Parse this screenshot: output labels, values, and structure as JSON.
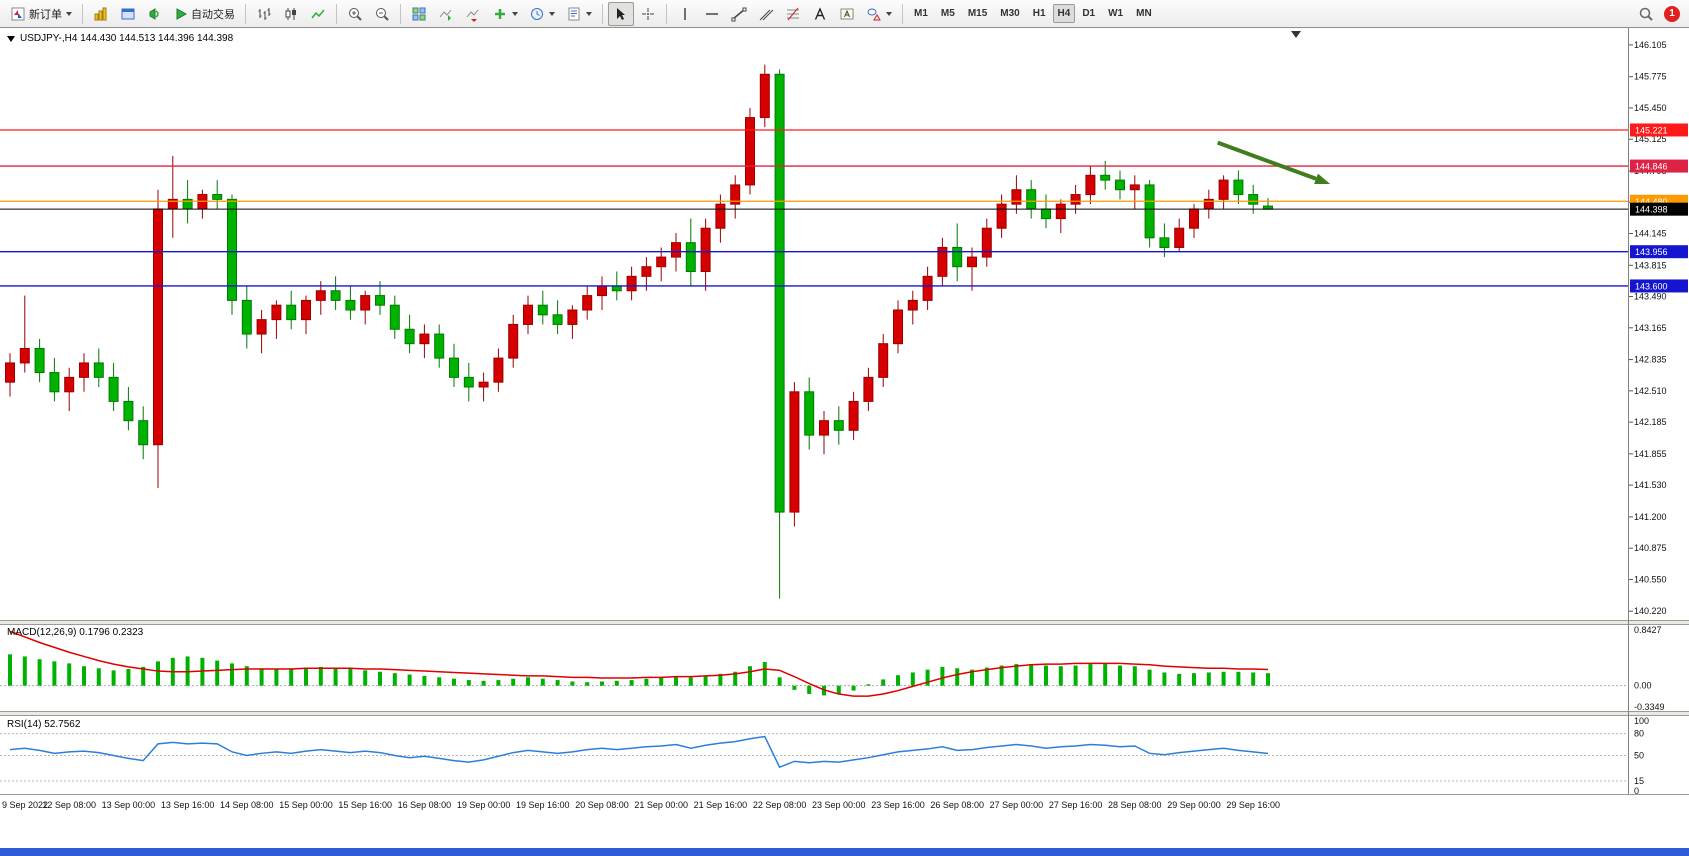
{
  "toolbar": {
    "new_order_label": "新订单",
    "autotrade_label": "自动交易",
    "timeframes": [
      "M1",
      "M5",
      "M15",
      "M30",
      "H1",
      "H4",
      "D1",
      "W1",
      "MN"
    ],
    "active_timeframe": "H4",
    "badge_count": "1"
  },
  "chart": {
    "header_text": "USDJPY-,H4  144.430 144.513 144.396 144.398"
  },
  "chart_data": {
    "type": "candlestick",
    "symbol": "USDJPY-",
    "timeframe": "H4",
    "ohlc_header": {
      "open": 144.43,
      "high": 144.513,
      "low": 144.396,
      "close": 144.398
    },
    "colors": {
      "bull": "#d60000",
      "bull_dark": "#9a0000",
      "bear": "#00b200",
      "bear_dark": "#007a00"
    },
    "price_axis": {
      "min": 140.22,
      "max": 146.105,
      "ticks": [
        "146.105",
        "145.775",
        "145.450",
        "145.125",
        "144.795",
        "144.470",
        "144.145",
        "143.815",
        "143.490",
        "143.165",
        "142.835",
        "142.510",
        "142.185",
        "141.855",
        "141.530",
        "141.200",
        "140.875",
        "140.550",
        "140.220"
      ]
    },
    "hlines": [
      {
        "price": 145.221,
        "label": "145.221",
        "color": "#ff1a1a"
      },
      {
        "price": 144.846,
        "label": "144.846",
        "color": "#dd2244"
      },
      {
        "price": 144.48,
        "label": "144.480",
        "color": "#ff9900"
      },
      {
        "price": 143.956,
        "label": "143.956",
        "color": "#1515d0"
      },
      {
        "price": 143.6,
        "label": "143.600",
        "color": "#1515d0"
      }
    ],
    "current_price": {
      "value": 144.398,
      "label": "144.398",
      "color": "#000000"
    },
    "arrow": {
      "from_idx": 81.6,
      "from_price": 145.09,
      "to_idx": 89.2,
      "to_price": 144.66,
      "color": "#3f7d1e"
    },
    "candles": [
      [
        142.6,
        142.9,
        142.45,
        142.8
      ],
      [
        142.8,
        143.5,
        142.7,
        142.95
      ],
      [
        142.95,
        143.05,
        142.6,
        142.7
      ],
      [
        142.7,
        142.85,
        142.4,
        142.5
      ],
      [
        142.5,
        142.75,
        142.3,
        142.65
      ],
      [
        142.65,
        142.9,
        142.5,
        142.8
      ],
      [
        142.8,
        142.95,
        142.55,
        142.65
      ],
      [
        142.65,
        142.8,
        142.3,
        142.4
      ],
      [
        142.4,
        142.55,
        142.1,
        142.2
      ],
      [
        142.2,
        142.35,
        141.8,
        141.95
      ],
      [
        141.95,
        144.6,
        141.5,
        144.4
      ],
      [
        144.4,
        144.95,
        144.1,
        144.5
      ],
      [
        144.5,
        144.7,
        144.25,
        144.4
      ],
      [
        144.4,
        144.6,
        144.3,
        144.55
      ],
      [
        144.55,
        144.7,
        144.4,
        144.5
      ],
      [
        144.5,
        144.55,
        143.3,
        143.45
      ],
      [
        143.45,
        143.6,
        142.95,
        143.1
      ],
      [
        143.1,
        143.35,
        142.9,
        143.25
      ],
      [
        143.25,
        143.45,
        143.05,
        143.4
      ],
      [
        143.4,
        143.55,
        143.15,
        143.25
      ],
      [
        143.25,
        143.5,
        143.1,
        143.45
      ],
      [
        143.45,
        143.65,
        143.3,
        143.55
      ],
      [
        143.55,
        143.7,
        143.35,
        143.45
      ],
      [
        143.45,
        143.6,
        143.25,
        143.35
      ],
      [
        143.35,
        143.55,
        143.2,
        143.5
      ],
      [
        143.5,
        143.65,
        143.3,
        143.4
      ],
      [
        143.4,
        143.5,
        143.05,
        143.15
      ],
      [
        143.15,
        143.3,
        142.9,
        143.0
      ],
      [
        143.0,
        143.2,
        142.85,
        143.1
      ],
      [
        143.1,
        143.2,
        142.75,
        142.85
      ],
      [
        142.85,
        143.0,
        142.55,
        142.65
      ],
      [
        142.65,
        142.8,
        142.4,
        142.55
      ],
      [
        142.55,
        142.7,
        142.4,
        142.6
      ],
      [
        142.6,
        142.95,
        142.5,
        142.85
      ],
      [
        142.85,
        143.3,
        142.75,
        143.2
      ],
      [
        143.2,
        143.5,
        143.1,
        143.4
      ],
      [
        143.4,
        143.55,
        143.2,
        143.3
      ],
      [
        143.3,
        143.45,
        143.1,
        143.2
      ],
      [
        143.2,
        143.4,
        143.05,
        143.35
      ],
      [
        143.35,
        143.6,
        143.25,
        143.5
      ],
      [
        143.5,
        143.7,
        143.35,
        143.6
      ],
      [
        143.6,
        143.75,
        143.45,
        143.55
      ],
      [
        143.55,
        143.8,
        143.45,
        143.7
      ],
      [
        143.7,
        143.9,
        143.55,
        143.8
      ],
      [
        143.8,
        144.0,
        143.65,
        143.9
      ],
      [
        143.9,
        144.15,
        143.75,
        144.05
      ],
      [
        144.05,
        144.3,
        143.6,
        143.75
      ],
      [
        143.75,
        144.3,
        143.55,
        144.2
      ],
      [
        144.2,
        144.55,
        144.05,
        144.45
      ],
      [
        144.45,
        144.75,
        144.3,
        144.65
      ],
      [
        144.65,
        145.45,
        144.55,
        145.35
      ],
      [
        145.35,
        145.9,
        145.25,
        145.8
      ],
      [
        145.8,
        145.85,
        140.35,
        141.25
      ],
      [
        141.25,
        142.6,
        141.1,
        142.5
      ],
      [
        142.5,
        142.65,
        141.9,
        142.05
      ],
      [
        142.05,
        142.3,
        141.85,
        142.2
      ],
      [
        142.2,
        142.35,
        141.95,
        142.1
      ],
      [
        142.1,
        142.5,
        142.0,
        142.4
      ],
      [
        142.4,
        142.75,
        142.3,
        142.65
      ],
      [
        142.65,
        143.1,
        142.55,
        143.0
      ],
      [
        143.0,
        143.45,
        142.9,
        143.35
      ],
      [
        143.35,
        143.55,
        143.2,
        143.45
      ],
      [
        143.45,
        143.8,
        143.35,
        143.7
      ],
      [
        143.7,
        144.1,
        143.6,
        144.0
      ],
      [
        144.0,
        144.25,
        143.65,
        143.8
      ],
      [
        143.8,
        144.0,
        143.55,
        143.9
      ],
      [
        143.9,
        144.3,
        143.8,
        144.2
      ],
      [
        144.2,
        144.55,
        144.1,
        144.45
      ],
      [
        144.45,
        144.75,
        144.35,
        144.6
      ],
      [
        144.6,
        144.7,
        144.3,
        144.4
      ],
      [
        144.4,
        144.55,
        144.2,
        144.3
      ],
      [
        144.3,
        144.5,
        144.15,
        144.45
      ],
      [
        144.45,
        144.65,
        144.35,
        144.55
      ],
      [
        144.55,
        144.85,
        144.45,
        144.75
      ],
      [
        144.75,
        144.9,
        144.6,
        144.7
      ],
      [
        144.7,
        144.8,
        144.5,
        144.6
      ],
      [
        144.6,
        144.75,
        144.4,
        144.65
      ],
      [
        144.65,
        144.7,
        144.0,
        144.1
      ],
      [
        144.1,
        144.25,
        143.9,
        144.0
      ],
      [
        144.0,
        144.3,
        143.95,
        144.2
      ],
      [
        144.2,
        144.45,
        144.1,
        144.4
      ],
      [
        144.4,
        144.6,
        144.3,
        144.5
      ],
      [
        144.5,
        144.75,
        144.4,
        144.7
      ],
      [
        144.7,
        144.8,
        144.45,
        144.55
      ],
      [
        144.55,
        144.65,
        144.35,
        144.45
      ],
      [
        144.43,
        144.513,
        144.396,
        144.398
      ]
    ],
    "x_labels": [
      {
        "idx": 0,
        "label": "9 Sep 2022"
      },
      {
        "idx": 4,
        "label": "12 Sep 08:00"
      },
      {
        "idx": 8,
        "label": "13 Sep 00:00"
      },
      {
        "idx": 12,
        "label": "13 Sep 16:00"
      },
      {
        "idx": 16,
        "label": "14 Sep 08:00"
      },
      {
        "idx": 20,
        "label": "15 Sep 00:00"
      },
      {
        "idx": 24,
        "label": "15 Sep 16:00"
      },
      {
        "idx": 28,
        "label": "16 Sep 08:00"
      },
      {
        "idx": 32,
        "label": "19 Sep 00:00"
      },
      {
        "idx": 36,
        "label": "19 Sep 16:00"
      },
      {
        "idx": 40,
        "label": "20 Sep 08:00"
      },
      {
        "idx": 44,
        "label": "21 Sep 00:00"
      },
      {
        "idx": 48,
        "label": "21 Sep 16:00"
      },
      {
        "idx": 52,
        "label": "22 Sep 08:00"
      },
      {
        "idx": 56,
        "label": "23 Sep 00:00"
      },
      {
        "idx": 60,
        "label": "23 Sep 16:00"
      },
      {
        "idx": 64,
        "label": "26 Sep 08:00"
      },
      {
        "idx": 68,
        "label": "27 Sep 00:00"
      },
      {
        "idx": 72,
        "label": "27 Sep 16:00"
      },
      {
        "idx": 76,
        "label": "28 Sep 08:00"
      },
      {
        "idx": 80,
        "label": "29 Sep 00:00"
      },
      {
        "idx": 84,
        "label": "29 Sep 16:00"
      }
    ],
    "macd": {
      "label": "MACD(12,26,9)",
      "values_text": "0.1796 0.2323",
      "axis_max": 0.8427,
      "axis_min": -0.3349,
      "axis_labels": {
        "max": "0.8427",
        "zero": "0.00",
        "min": "-0.3349"
      },
      "histogram_color": "#00b200",
      "signal_color": "#e00000",
      "histogram": [
        0.45,
        0.42,
        0.38,
        0.35,
        0.32,
        0.28,
        0.25,
        0.22,
        0.24,
        0.27,
        0.35,
        0.4,
        0.42,
        0.4,
        0.36,
        0.32,
        0.28,
        0.25,
        0.24,
        0.25,
        0.26,
        0.27,
        0.26,
        0.24,
        0.22,
        0.2,
        0.18,
        0.16,
        0.14,
        0.12,
        0.1,
        0.08,
        0.07,
        0.08,
        0.1,
        0.12,
        0.1,
        0.08,
        0.06,
        0.05,
        0.06,
        0.07,
        0.08,
        0.1,
        0.12,
        0.14,
        0.12,
        0.14,
        0.17,
        0.2,
        0.28,
        0.34,
        0.12,
        -0.06,
        -0.12,
        -0.14,
        -0.12,
        -0.07,
        0.02,
        0.09,
        0.15,
        0.19,
        0.23,
        0.27,
        0.25,
        0.23,
        0.26,
        0.29,
        0.31,
        0.31,
        0.29,
        0.28,
        0.29,
        0.31,
        0.31,
        0.29,
        0.28,
        0.23,
        0.19,
        0.17,
        0.18,
        0.19,
        0.2,
        0.2,
        0.19,
        0.1796
      ],
      "signal": [
        0.78,
        0.7,
        0.62,
        0.55,
        0.48,
        0.42,
        0.36,
        0.31,
        0.27,
        0.24,
        0.21,
        0.2,
        0.2,
        0.21,
        0.22,
        0.23,
        0.24,
        0.24,
        0.24,
        0.24,
        0.25,
        0.25,
        0.25,
        0.25,
        0.24,
        0.24,
        0.23,
        0.22,
        0.21,
        0.2,
        0.19,
        0.18,
        0.17,
        0.16,
        0.15,
        0.14,
        0.14,
        0.13,
        0.12,
        0.12,
        0.11,
        0.11,
        0.11,
        0.12,
        0.12,
        0.13,
        0.13,
        0.14,
        0.15,
        0.17,
        0.2,
        0.24,
        0.22,
        0.13,
        0.03,
        -0.06,
        -0.12,
        -0.15,
        -0.15,
        -0.12,
        -0.07,
        -0.01,
        0.05,
        0.11,
        0.16,
        0.2,
        0.23,
        0.26,
        0.28,
        0.3,
        0.31,
        0.31,
        0.32,
        0.32,
        0.32,
        0.32,
        0.31,
        0.3,
        0.28,
        0.27,
        0.26,
        0.25,
        0.25,
        0.24,
        0.24,
        0.2323
      ]
    },
    "rsi": {
      "label": "RSI(14)",
      "value_text": "52.7562",
      "line_color": "#2a7fdc",
      "axis_labels": [
        "100",
        "80",
        "50",
        "15",
        "0"
      ],
      "dashed_levels": [
        80,
        50,
        15
      ],
      "values": [
        58,
        60,
        57,
        53,
        55,
        56,
        54,
        50,
        46,
        43,
        66,
        68,
        66,
        67,
        66,
        55,
        50,
        53,
        55,
        53,
        56,
        58,
        56,
        54,
        56,
        54,
        50,
        47,
        49,
        46,
        43,
        41,
        44,
        49,
        54,
        57,
        55,
        53,
        55,
        58,
        60,
        58,
        60,
        62,
        63,
        65,
        60,
        64,
        67,
        69,
        73,
        76,
        34,
        42,
        40,
        42,
        41,
        44,
        47,
        51,
        55,
        57,
        59,
        62,
        57,
        58,
        61,
        63,
        65,
        63,
        60,
        62,
        63,
        65,
        64,
        62,
        63,
        53,
        51,
        54,
        56,
        58,
        60,
        57,
        55,
        52.76
      ]
    }
  }
}
